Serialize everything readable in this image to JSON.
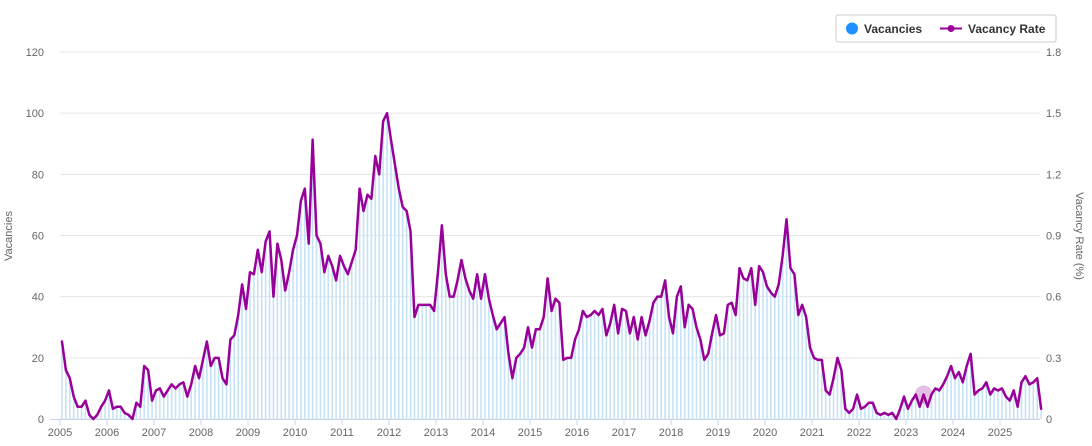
{
  "chart_data": {
    "type": "bar+line",
    "title": "",
    "ylabel_left": "Vacancies",
    "ylabel_right": "Vacancy Rate (%)",
    "left_axis": {
      "min": 0,
      "max": 120,
      "ticks": [
        0,
        20,
        40,
        60,
        80,
        100,
        120
      ]
    },
    "right_axis": {
      "min": 0,
      "max": 1.8,
      "ticks": [
        "0",
        "0.3",
        "0.6",
        "0.9",
        "1.2",
        "1.5",
        "1.8"
      ],
      "tick_values": [
        0,
        0.3,
        0.6,
        0.9,
        1.2,
        1.5,
        1.8
      ]
    },
    "x_axis": {
      "start_year": 2005,
      "end_year": 2025,
      "years": [
        "2005",
        "2006",
        "2007",
        "2008",
        "2009",
        "2010",
        "2011",
        "2012",
        "2013",
        "2014",
        "2015",
        "2016",
        "2017",
        "2018",
        "2019",
        "2020",
        "2021",
        "2022",
        "2023",
        "2024",
        "2025"
      ]
    },
    "grid": true,
    "legend_position": "top-right",
    "legend": [
      {
        "name": "Vacancies",
        "color": "#1e90ff",
        "marker": "circle"
      },
      {
        "name": "Vacancy Rate",
        "color": "#990099",
        "marker": "line-dot"
      }
    ],
    "colors": {
      "bars": "#c6e2f7",
      "line": "#990099",
      "grid": "#e6e6e6"
    },
    "series": [
      {
        "name": "Vacancies",
        "kind": "bar",
        "axis": "left",
        "start": "2005-01",
        "monthly_values": [
          25,
          16,
          13,
          7,
          4,
          4,
          6,
          1,
          0,
          1,
          4,
          6,
          9,
          3,
          4,
          4,
          2,
          1,
          0,
          5,
          4,
          17,
          16,
          6,
          9,
          10,
          7,
          9,
          11,
          10,
          11,
          12,
          7,
          11,
          17,
          13,
          19,
          25,
          17,
          20,
          20,
          13,
          11,
          26,
          27,
          34,
          44,
          36,
          48,
          47,
          55,
          48,
          58,
          61,
          40,
          57,
          52,
          42,
          48,
          55,
          60,
          71,
          75,
          57,
          91,
          60,
          57,
          48,
          53,
          50,
          45,
          53,
          50,
          47,
          51,
          55,
          75,
          68,
          73,
          72,
          86,
          80,
          97,
          100,
          91,
          83,
          75,
          69,
          68,
          61,
          33,
          37,
          37,
          37,
          37,
          35,
          48,
          63,
          47,
          40,
          40,
          45,
          52,
          46,
          42,
          39,
          47,
          39,
          47,
          39,
          34,
          29,
          31,
          33,
          21,
          13,
          20,
          21,
          23,
          30,
          23,
          29,
          29,
          33,
          46,
          35,
          39,
          38,
          19,
          20,
          20,
          26,
          29,
          35,
          33,
          34,
          35,
          34,
          36,
          27,
          31,
          37,
          28,
          36,
          35,
          28,
          33,
          26,
          33,
          27,
          32,
          38,
          40,
          40,
          45,
          33,
          28,
          40,
          43,
          30,
          37,
          36,
          30,
          26,
          19,
          21,
          28,
          34,
          27,
          28,
          37,
          38,
          34,
          49,
          46,
          45,
          49,
          37,
          50,
          48,
          43,
          41,
          40,
          44,
          53,
          65,
          49,
          47,
          34,
          37,
          33,
          23,
          20,
          19,
          19,
          9,
          8,
          13,
          20,
          16,
          3,
          2,
          3,
          8,
          3,
          4,
          5,
          5,
          2,
          1,
          2,
          1,
          2,
          0,
          3,
          7,
          3,
          6,
          8,
          4,
          8,
          4,
          8,
          10,
          9,
          11,
          14,
          17,
          13,
          15,
          12,
          17,
          21,
          8,
          9,
          10,
          12,
          8,
          10,
          9,
          10,
          7,
          6,
          9,
          4,
          12,
          14,
          11,
          12,
          13,
          3
        ]
      },
      {
        "name": "Vacancy Rate",
        "kind": "line",
        "axis": "right",
        "start": "2005-01",
        "monthly_values": [
          0.38,
          0.24,
          0.2,
          0.11,
          0.06,
          0.06,
          0.09,
          0.02,
          0,
          0.02,
          0.06,
          0.09,
          0.14,
          0.05,
          0.06,
          0.06,
          0.03,
          0.02,
          0,
          0.08,
          0.06,
          0.26,
          0.24,
          0.09,
          0.14,
          0.15,
          0.11,
          0.14,
          0.17,
          0.15,
          0.17,
          0.18,
          0.11,
          0.17,
          0.26,
          0.2,
          0.29,
          0.38,
          0.26,
          0.3,
          0.3,
          0.2,
          0.17,
          0.39,
          0.41,
          0.51,
          0.66,
          0.54,
          0.72,
          0.71,
          0.83,
          0.72,
          0.87,
          0.92,
          0.6,
          0.86,
          0.78,
          0.63,
          0.72,
          0.83,
          0.9,
          1.07,
          1.13,
          0.86,
          1.37,
          0.9,
          0.86,
          0.72,
          0.8,
          0.75,
          0.68,
          0.8,
          0.75,
          0.71,
          0.77,
          0.83,
          1.13,
          1.02,
          1.1,
          1.08,
          1.29,
          1.2,
          1.46,
          1.5,
          1.37,
          1.25,
          1.13,
          1.04,
          1.02,
          0.92,
          0.5,
          0.56,
          0.56,
          0.56,
          0.56,
          0.53,
          0.72,
          0.95,
          0.71,
          0.6,
          0.6,
          0.68,
          0.78,
          0.69,
          0.63,
          0.59,
          0.71,
          0.59,
          0.71,
          0.59,
          0.51,
          0.44,
          0.47,
          0.5,
          0.32,
          0.2,
          0.3,
          0.32,
          0.35,
          0.45,
          0.35,
          0.44,
          0.44,
          0.5,
          0.69,
          0.53,
          0.59,
          0.57,
          0.29,
          0.3,
          0.3,
          0.39,
          0.44,
          0.53,
          0.5,
          0.51,
          0.53,
          0.51,
          0.54,
          0.41,
          0.47,
          0.56,
          0.42,
          0.54,
          0.53,
          0.42,
          0.5,
          0.39,
          0.5,
          0.41,
          0.48,
          0.57,
          0.6,
          0.6,
          0.68,
          0.5,
          0.42,
          0.6,
          0.65,
          0.45,
          0.56,
          0.54,
          0.45,
          0.39,
          0.29,
          0.32,
          0.42,
          0.51,
          0.41,
          0.42,
          0.56,
          0.57,
          0.51,
          0.74,
          0.69,
          0.68,
          0.74,
          0.56,
          0.75,
          0.72,
          0.65,
          0.62,
          0.6,
          0.66,
          0.8,
          0.98,
          0.74,
          0.71,
          0.51,
          0.56,
          0.5,
          0.35,
          0.3,
          0.29,
          0.29,
          0.14,
          0.12,
          0.2,
          0.3,
          0.24,
          0.05,
          0.03,
          0.05,
          0.12,
          0.05,
          0.06,
          0.08,
          0.08,
          0.03,
          0.02,
          0.03,
          0.02,
          0.03,
          0,
          0.05,
          0.11,
          0.05,
          0.09,
          0.12,
          0.06,
          0.12,
          0.06,
          0.12,
          0.15,
          0.14,
          0.17,
          0.21,
          0.26,
          0.2,
          0.23,
          0.18,
          0.26,
          0.32,
          0.12,
          0.14,
          0.15,
          0.18,
          0.12,
          0.15,
          0.14,
          0.15,
          0.11,
          0.09,
          0.14,
          0.06,
          0.18,
          0.21,
          0.17,
          0.18,
          0.2,
          0.05
        ]
      }
    ]
  }
}
